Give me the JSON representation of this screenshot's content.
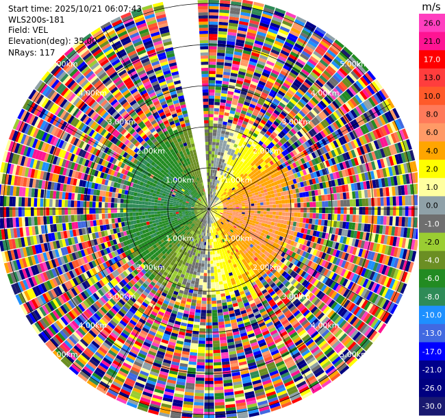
{
  "header": {
    "start_time": "Start time: 2025/10/21 06:07:43",
    "site": "WLS200s-181",
    "field": "Field: VEL",
    "elevation": "Elevation(deg): 35.00",
    "nrays": "NRays: 117"
  },
  "chart_data": {
    "type": "heatmap",
    "projection": "polar (PPI)",
    "field": "VEL",
    "units": "m/s",
    "elevation_deg": 35.0,
    "n_rays": 117,
    "range_rings_km": [
      1.0,
      2.0,
      3.0,
      4.0,
      5.0
    ],
    "range_ring_labels": [
      "1.00km",
      "2.00km",
      "3.00km",
      "4.00km",
      "5.00km"
    ],
    "max_range_km": 5.1,
    "data_gap_azimuth_deg": [
      347,
      357
    ],
    "colorbar": {
      "unit_label": "m/s",
      "tick_labels": [
        "26.0",
        "21.0",
        "17.0",
        "13.0",
        "10.0",
        "8.0",
        "6.0",
        "4.0",
        "2.0",
        "1.0",
        "0.0",
        "-1.0",
        "-2.0",
        "-4.0",
        "-6.0",
        "-8.0",
        "-10.0",
        "-13.0",
        "-17.0",
        "-21.0",
        "-26.0",
        "-30.0"
      ],
      "colors": [
        "#ff3fbf",
        "#ff1493",
        "#ff0000",
        "#ff3d3d",
        "#ff5a2a",
        "#ff7a5a",
        "#ff9a66",
        "#ffa500",
        "#ffff00",
        "#ffffa0",
        "#8fa1a8",
        "#6f6f6f",
        "#9acd32",
        "#6b8e23",
        "#228b22",
        "#2e8b57",
        "#1e90ff",
        "#4169e1",
        "#0000ff",
        "#00008b",
        "#000080",
        "#191970"
      ]
    },
    "background_noise_beyond_km": 1.9,
    "wind_pattern": "receding (positive, warm colors) to the east/south-east, approaching (negative, greens) to the west"
  }
}
